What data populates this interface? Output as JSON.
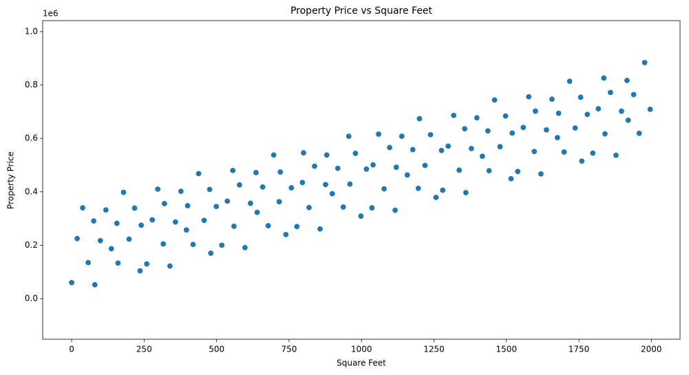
{
  "chart_data": {
    "type": "scatter",
    "title": "Property Price vs Square Feet",
    "x_label": "Square Feet",
    "y_label": "Property Price",
    "y_offset_label": "1e6",
    "color": "#1f77b4",
    "x": [
      0,
      19,
      38,
      57,
      76,
      80,
      99,
      118,
      137,
      156,
      160,
      179,
      198,
      217,
      236,
      240,
      259,
      278,
      297,
      316,
      320,
      339,
      358,
      377,
      396,
      400,
      419,
      438,
      457,
      476,
      480,
      499,
      518,
      537,
      556,
      560,
      579,
      598,
      617,
      636,
      640,
      659,
      678,
      697,
      716,
      720,
      739,
      758,
      777,
      796,
      800,
      819,
      838,
      857,
      876,
      880,
      899,
      918,
      937,
      956,
      960,
      979,
      998,
      1017,
      1036,
      1040,
      1059,
      1078,
      1097,
      1116,
      1120,
      1139,
      1158,
      1177,
      1196,
      1200,
      1219,
      1238,
      1257,
      1276,
      1280,
      1299,
      1318,
      1337,
      1356,
      1360,
      1379,
      1398,
      1417,
      1436,
      1440,
      1459,
      1478,
      1497,
      1516,
      1520,
      1539,
      1558,
      1577,
      1596,
      1600,
      1619,
      1638,
      1657,
      1676,
      1680,
      1699,
      1718,
      1737,
      1756,
      1760,
      1779,
      1798,
      1817,
      1836,
      1840,
      1859,
      1878,
      1897,
      1916,
      1920,
      1939,
      1958,
      1977,
      1996
    ],
    "values": [
      60000,
      225000,
      340000,
      135000,
      291000,
      52000,
      217000,
      332000,
      187000,
      282000,
      133000,
      398000,
      223000,
      339000,
      104000,
      275000,
      130000,
      295000,
      410000,
      205000,
      356000,
      122000,
      287000,
      402000,
      257000,
      348000,
      203000,
      468000,
      293000,
      409000,
      170000,
      345000,
      200000,
      365000,
      480000,
      271000,
      426000,
      191000,
      357000,
      472000,
      323000,
      418000,
      273000,
      538000,
      363000,
      474000,
      240000,
      415000,
      270000,
      435000,
      546000,
      341000,
      496000,
      261000,
      427000,
      538000,
      393000,
      488000,
      343000,
      608000,
      429000,
      544000,
      309000,
      485000,
      340000,
      501000,
      616000,
      411000,
      566000,
      331000,
      492000,
      608000,
      463000,
      558000,
      413000,
      674000,
      499000,
      614000,
      379000,
      555000,
      406000,
      571000,
      686000,
      481000,
      636000,
      397000,
      562000,
      677000,
      533000,
      628000,
      479000,
      744000,
      569000,
      684000,
      449000,
      620000,
      476000,
      641000,
      756000,
      551000,
      702000,
      467000,
      632000,
      747000,
      603000,
      694000,
      549000,
      814000,
      639000,
      754000,
      515000,
      690000,
      545000,
      711000,
      826000,
      617000,
      772000,
      537000,
      702000,
      817000,
      668000,
      764000,
      619000,
      884000,
      709000
    ],
    "xlim": [
      -100,
      2099
    ],
    "ylim": [
      -152000,
      1041000
    ],
    "xticks": [
      0,
      250,
      500,
      750,
      1000,
      1250,
      1500,
      1750,
      2000
    ],
    "yticks": [
      {
        "value": 0,
        "label": "0.0"
      },
      {
        "value": 200000,
        "label": "0.2"
      },
      {
        "value": 400000,
        "label": "0.4"
      },
      {
        "value": 600000,
        "label": "0.6"
      },
      {
        "value": 800000,
        "label": "0.8"
      },
      {
        "value": 1000000,
        "label": "1.0"
      }
    ]
  }
}
